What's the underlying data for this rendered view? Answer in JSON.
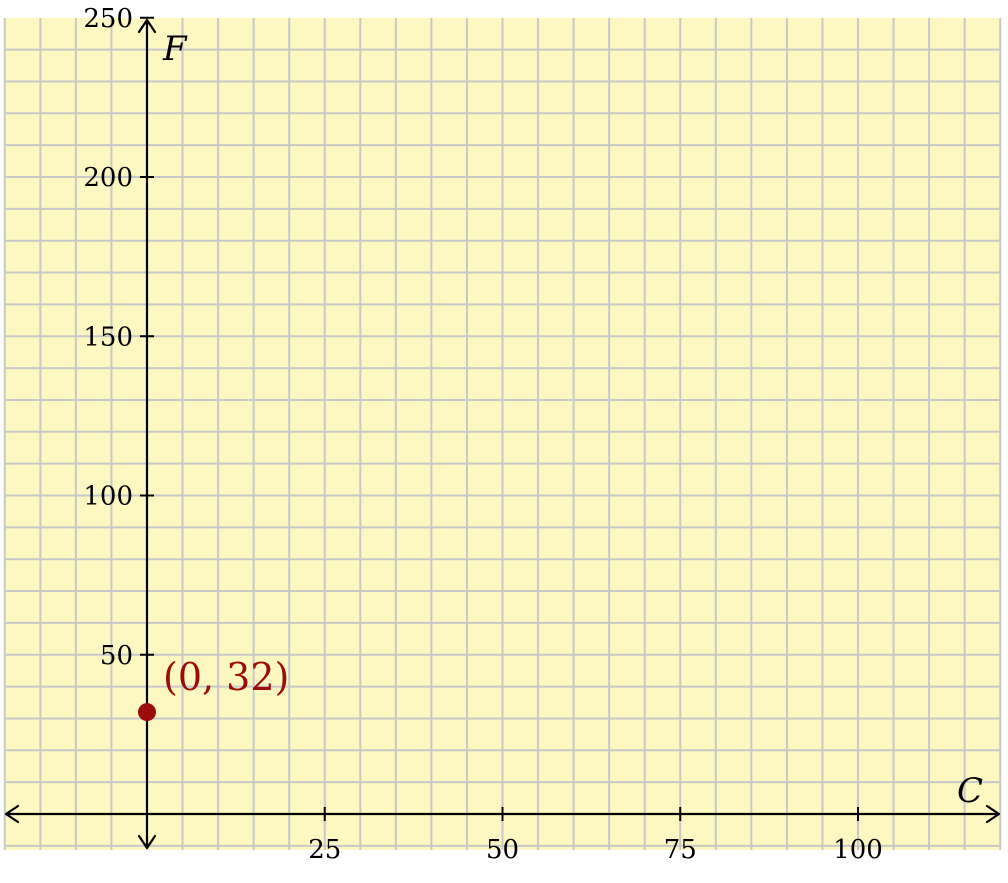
{
  "colors": {
    "background": "#fdf8c2",
    "grid": "#c8c8c8",
    "axis": "#000000",
    "point": "#9b0c0c"
  },
  "chart_data": {
    "type": "scatter",
    "xlabel": "C",
    "ylabel": "F",
    "xlim": [
      -20,
      120
    ],
    "ylim": [
      -10,
      250
    ],
    "grid": true,
    "grid_step": {
      "x": 5,
      "y": 10
    },
    "x_ticks": [
      25,
      50,
      75,
      100
    ],
    "x_tick_labels": [
      "25",
      "50",
      "75",
      "100"
    ],
    "y_ticks": [
      50,
      100,
      150,
      200,
      250
    ],
    "y_tick_labels": [
      "50",
      "100",
      "150",
      "200",
      "250"
    ],
    "points": [
      {
        "x": 0,
        "y": 32,
        "label": "(0, 32)"
      }
    ]
  }
}
